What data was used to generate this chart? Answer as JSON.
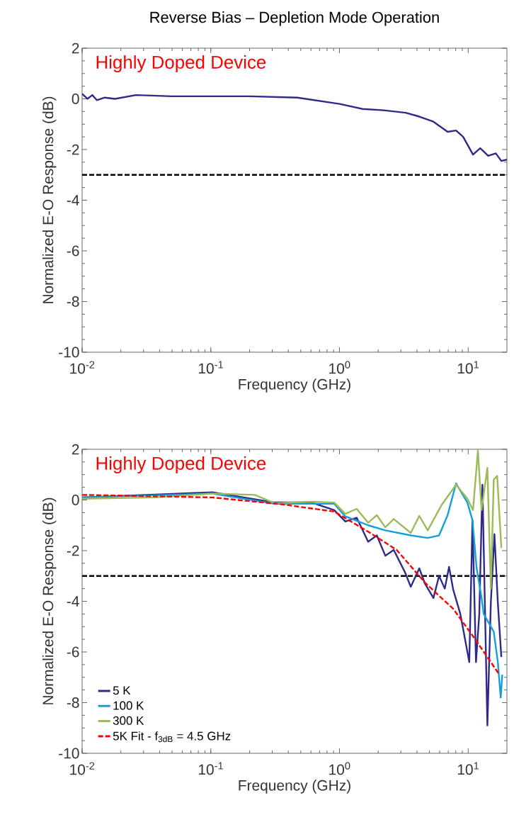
{
  "chart_data": [
    {
      "type": "line",
      "title": "Reverse Bias – Depletion Mode Operation",
      "xlabel": "Frequency (GHz)",
      "ylabel": "Normalized E-O Response (dB)",
      "annotations": [
        "Highly Doped Device"
      ],
      "log": "x",
      "grid": false,
      "legend": false,
      "xlim": [
        0.01,
        20
      ],
      "ylim": [
        -10,
        2
      ],
      "xticks": [
        {
          "value": 0.01,
          "label": "10$^{-2}$"
        },
        {
          "value": 0.1,
          "label": "10$^{-1}$"
        },
        {
          "value": 1,
          "label": "10$^{0}$"
        },
        {
          "value": 10,
          "label": "10$^{1}$"
        }
      ],
      "yticks": [
        -10,
        -8,
        -6,
        -4,
        -2,
        0,
        2
      ],
      "ref_lines": [
        {
          "axis": "y",
          "value": -3,
          "color": "#000000",
          "line_style": "dashed"
        }
      ],
      "series": [
        {
          "color": "#2e2a8a",
          "x": [
            0.01,
            0.011,
            0.012,
            0.013,
            0.015,
            0.018,
            0.0262,
            0.05,
            0.103,
            0.2,
            0.471,
            1.0,
            1.51,
            2.2,
            3.27,
            4.17,
            5.37,
            6.92,
            8.05,
            9.14,
            10.9,
            12.4,
            14.3,
            16.4,
            18.1,
            20
          ],
          "values": [
            0.2,
            0.0,
            0.15,
            -0.05,
            0.05,
            0.0,
            0.15,
            0.1,
            0.1,
            0.1,
            0.05,
            -0.2,
            -0.4,
            -0.45,
            -0.55,
            -0.7,
            -0.9,
            -1.3,
            -1.25,
            -1.5,
            -2.2,
            -1.95,
            -2.25,
            -2.15,
            -2.45,
            -2.4
          ]
        }
      ]
    },
    {
      "type": "line",
      "xlabel": "Frequency (GHz)",
      "ylabel": "Normalized E-O Response (dB)",
      "annotations": [
        "Highly Doped Device"
      ],
      "log": "x",
      "grid": false,
      "legend": "bottom left",
      "xlim": [
        0.01,
        20
      ],
      "ylim": [
        -10,
        2
      ],
      "xticks": [
        {
          "value": 0.01,
          "label": "10$^{-2}$"
        },
        {
          "value": 0.1,
          "label": "10$^{-1}$"
        },
        {
          "value": 1,
          "label": "10$^{0}$"
        },
        {
          "value": 10,
          "label": "10$^{1}$"
        }
      ],
      "yticks": [
        -10,
        -8,
        -6,
        -4,
        -2,
        0,
        2
      ],
      "ref_lines": [
        {
          "axis": "y",
          "value": -3,
          "color": "#000000",
          "line_style": "dashed"
        }
      ],
      "series": [
        {
          "name": "5 K",
          "color": "#2e2a8a",
          "x": [
            0.01,
            0.103,
            0.314,
            0.607,
            0.91,
            1.11,
            1.36,
            1.67,
            1.95,
            2.27,
            2.64,
            3.24,
            3.58,
            4.17,
            4.61,
            5.37,
            5.94,
            6.58,
            7.1,
            7.66,
            8.69,
            10.2,
            10.8,
            11.5,
            12.2,
            12.9,
            14.1,
            15.0,
            16.0,
            17.0,
            18.1
          ],
          "values": [
            0.1,
            0.3,
            -0.1,
            -0.1,
            -0.4,
            -0.85,
            -0.7,
            -1.65,
            -1.4,
            -2.2,
            -1.97,
            -2.87,
            -3.43,
            -2.7,
            -3.3,
            -3.87,
            -3.0,
            -3.5,
            -2.64,
            -3.55,
            -4.5,
            -6.4,
            -0.8,
            -6.4,
            -4.5,
            0.6,
            -8.9,
            -4.05,
            -1.35,
            -4.05,
            -6.2
          ]
        },
        {
          "name": "100 K",
          "color": "#12a0d7",
          "x": [
            0.01,
            0.103,
            0.314,
            0.91,
            1.11,
            1.67,
            2.27,
            3.58,
            4.85,
            5.94,
            6.92,
            8.05,
            9.86,
            10.8,
            11.6,
            12.7,
            13.2,
            15.8,
            17.0,
            17.9,
            18.4
          ],
          "values": [
            0.1,
            0.25,
            -0.15,
            -0.15,
            -0.65,
            -1.0,
            -1.2,
            -1.4,
            -1.5,
            -1.4,
            -0.6,
            0.65,
            -0.1,
            -0.8,
            -2.65,
            -3.85,
            -4.5,
            -5.2,
            -6.4,
            -7.8,
            -6.9
          ]
        },
        {
          "name": "300 K",
          "color": "#9bbb59",
          "x": [
            0.01,
            0.0373,
            0.103,
            0.22,
            0.314,
            0.607,
            0.91,
            1.11,
            1.36,
            1.67,
            1.95,
            2.27,
            2.64,
            3.58,
            4.17,
            4.85,
            6.25,
            8.05,
            9.86,
            10.9,
            11.9,
            12.7,
            14.1,
            15.0,
            15.8,
            16.8,
            18.1
          ],
          "values": [
            0.05,
            0.1,
            0.25,
            0.2,
            -0.13,
            -0.07,
            -0.1,
            -0.55,
            -0.35,
            -0.9,
            -0.6,
            -1.08,
            -0.75,
            -1.3,
            -0.63,
            -1.2,
            -0.18,
            0.6,
            0.05,
            -0.4,
            1.95,
            -0.4,
            1.27,
            -3.5,
            0.8,
            0.95,
            -1.9
          ]
        },
        {
          "name": "5K Fit - f$_{3dB}$ = 4.5 GHz",
          "color": "#ff0000",
          "line_style": "dashed",
          "x": [
            0.01,
            0.103,
            0.366,
            0.91,
            1.67,
            2.78,
            4.61,
            7.66,
            10.8,
            15.0,
            17.5
          ],
          "values": [
            0.2,
            0.1,
            -0.18,
            -0.46,
            -1.25,
            -1.97,
            -3.26,
            -4.3,
            -5.35,
            -6.4,
            -6.9
          ]
        }
      ]
    }
  ]
}
